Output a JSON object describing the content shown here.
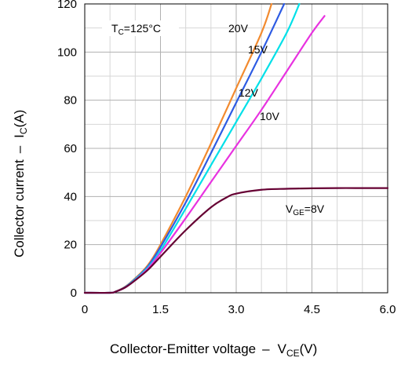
{
  "chart_data": {
    "type": "line",
    "title": "",
    "xlabel": {
      "main": "Collector-Emitter voltage",
      "dash": "–",
      "var": "V",
      "sub": "CE",
      "unit": "(V)"
    },
    "ylabel": {
      "main": "Collector current",
      "dash": "–",
      "var": "I",
      "sub": "C",
      "unit": "(A)"
    },
    "xlim": [
      0,
      6.0
    ],
    "ylim": [
      0,
      120
    ],
    "xticks": [
      0,
      1.5,
      3.0,
      4.5,
      6.0
    ],
    "xtick_labels": [
      "0",
      "1.5",
      "3.0",
      "4.5",
      "6.0"
    ],
    "yticks": [
      0,
      20,
      40,
      60,
      80,
      100,
      120
    ],
    "ytick_labels": [
      "0",
      "20",
      "40",
      "60",
      "80",
      "100",
      "120"
    ],
    "grid": true,
    "condition": {
      "var": "T",
      "sub": "C",
      "rest": "=125°C"
    },
    "series": [
      {
        "name": "20V",
        "color": "#f28a2e",
        "x": [
          0,
          0.5,
          0.6,
          0.8,
          1.0,
          1.25,
          1.5,
          2.0,
          2.5,
          3.0,
          3.5,
          3.7
        ],
        "y": [
          0,
          0,
          0.4,
          2.5,
          6.0,
          11.5,
          20.0,
          40.0,
          62.0,
          85.0,
          108.0,
          120.0
        ]
      },
      {
        "name": "15V",
        "color": "#2d5be3",
        "x": [
          0,
          0.5,
          0.6,
          0.8,
          1.0,
          1.25,
          1.5,
          2.0,
          2.5,
          3.0,
          3.5,
          3.95
        ],
        "y": [
          0,
          0,
          0.4,
          2.4,
          5.8,
          11.0,
          19.0,
          37.5,
          58.0,
          79.0,
          100.0,
          120.0
        ]
      },
      {
        "name": "12V",
        "color": "#00e0e8",
        "x": [
          0,
          0.5,
          0.6,
          0.8,
          1.0,
          1.25,
          1.5,
          2.0,
          2.5,
          3.0,
          3.5,
          4.0,
          4.25
        ],
        "y": [
          0,
          0,
          0.4,
          2.3,
          5.6,
          10.5,
          17.5,
          35.0,
          53.0,
          71.0,
          89.0,
          108.0,
          120.0
        ]
      },
      {
        "name": "10V",
        "color": "#e832e0",
        "x": [
          0,
          0.5,
          0.6,
          0.8,
          1.0,
          1.25,
          1.5,
          2.0,
          2.5,
          3.0,
          3.5,
          4.0,
          4.5,
          4.75
        ],
        "y": [
          0,
          0,
          0.4,
          2.2,
          5.3,
          10.0,
          16.5,
          31.0,
          46.0,
          61.0,
          76.0,
          92.0,
          108.0,
          115.0
        ]
      },
      {
        "name": "V_GE=8V",
        "color": "#660033",
        "x": [
          0,
          0.5,
          0.6,
          0.8,
          1.0,
          1.25,
          1.5,
          2.0,
          2.5,
          2.8,
          3.0,
          3.5,
          4.0,
          4.5,
          5.0,
          5.5,
          6.0
        ],
        "y": [
          0,
          0,
          0.4,
          2.2,
          5.2,
          9.5,
          15.0,
          26.0,
          35.5,
          39.5,
          41.2,
          42.8,
          43.2,
          43.4,
          43.5,
          43.5,
          43.5
        ]
      }
    ],
    "series_labels": {
      "s20": "20V",
      "s15": "15V",
      "s12": "12V",
      "s10": "10V",
      "s8": {
        "var": "V",
        "sub": "GE",
        "rest": "=8V"
      }
    }
  }
}
